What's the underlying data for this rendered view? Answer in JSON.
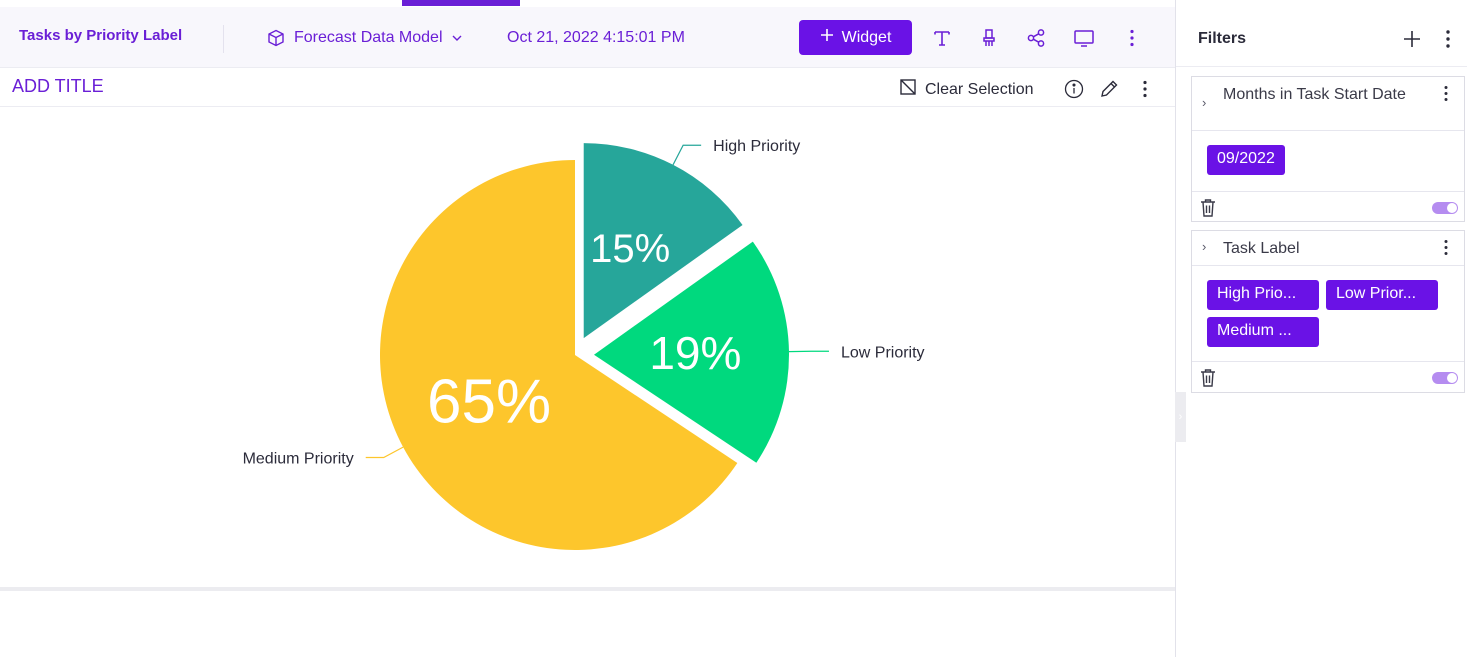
{
  "header": {
    "dashboard_title": "Tasks by Priority Label",
    "data_model": "Forecast Data Model",
    "timestamp": "Oct 21, 2022 4:15:01 PM",
    "widget_button": "Widget"
  },
  "widget": {
    "add_title": "ADD TITLE",
    "clear_selection": "Clear Selection"
  },
  "chart_data": {
    "type": "pie",
    "title": "",
    "slices": [
      {
        "label": "High Priority",
        "value": 15,
        "display": "15%",
        "color": "#26a69a"
      },
      {
        "label": "Low Priority",
        "value": 19,
        "display": "19%",
        "color": "#00d97e"
      },
      {
        "label": "Medium Priority",
        "value": 65,
        "display": "65%",
        "color": "#fdc62c"
      }
    ],
    "exploded": true,
    "legend": "none (labels on leader lines)"
  },
  "filters": {
    "title": "Filters",
    "panels": [
      {
        "title": "Months in Task Start Date",
        "chips": [
          "09/2022"
        ],
        "enabled": true
      },
      {
        "title": "Task Label",
        "chips": [
          "High Prio...",
          "Low Prior...",
          "Medium ..."
        ],
        "enabled": true
      }
    ]
  },
  "colors": {
    "accent": "#6a12e6"
  },
  "icons": [
    "cube-icon",
    "chevron-down-icon",
    "plus-icon",
    "text-icon",
    "brush-icon",
    "share-icon",
    "monitor-icon",
    "more-vertical-icon",
    "clear-selection-icon",
    "info-icon",
    "pencil-icon",
    "trash-icon",
    "chevron-right-icon"
  ]
}
